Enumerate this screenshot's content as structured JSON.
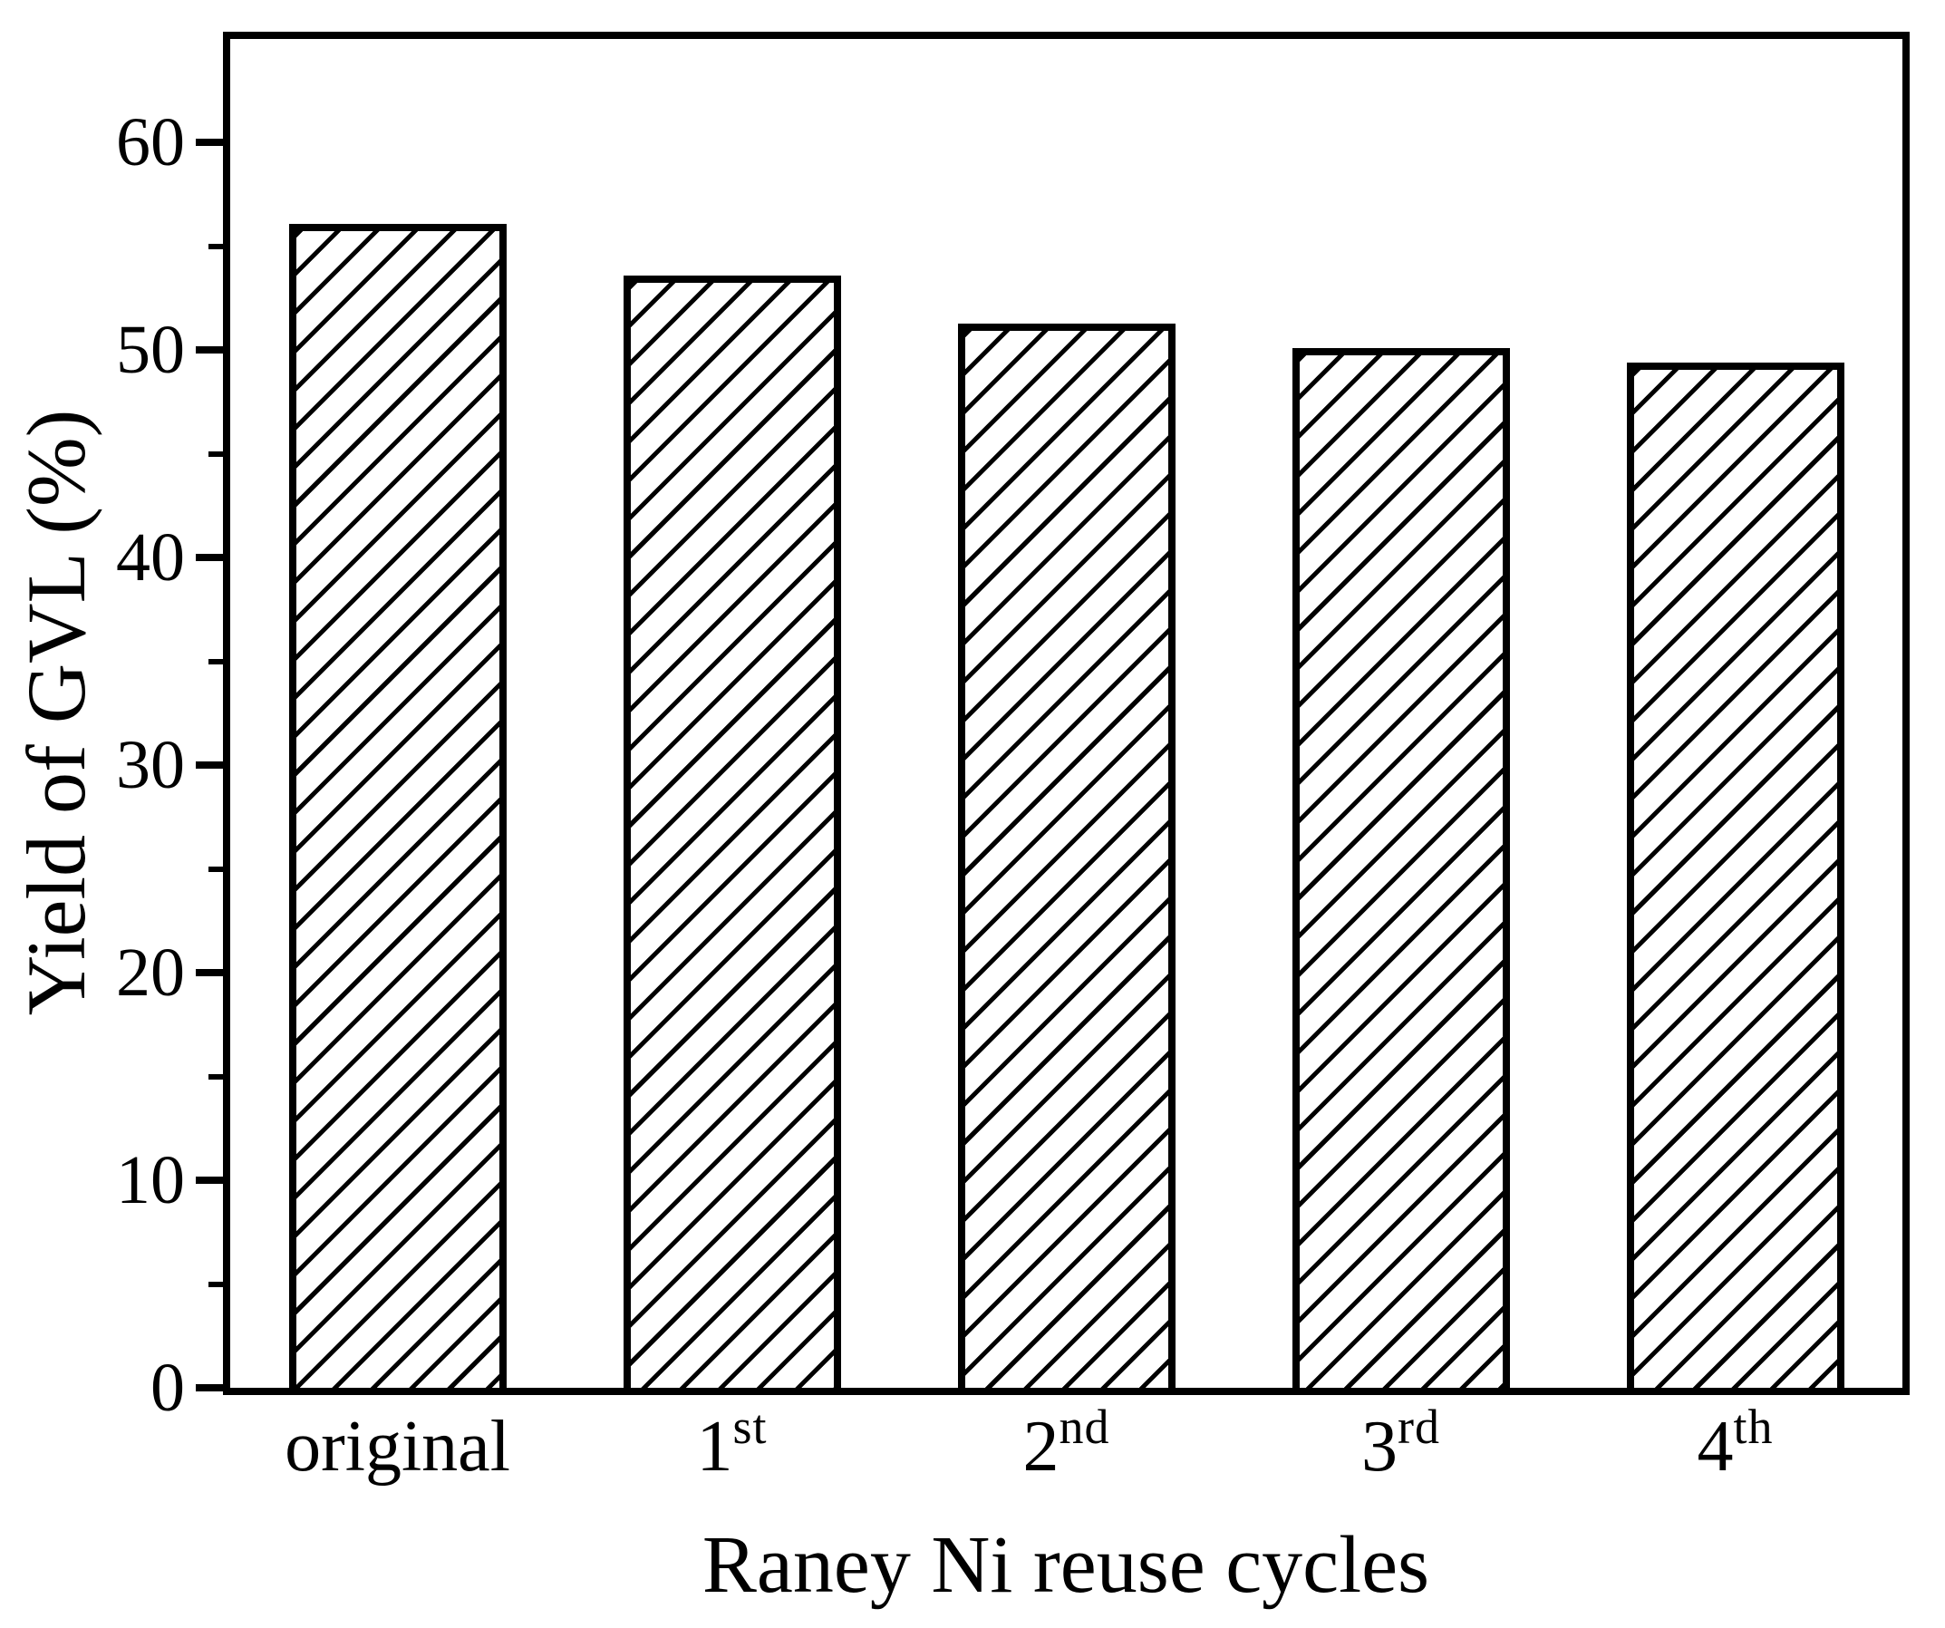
{
  "chart_data": {
    "type": "bar",
    "title": "",
    "xlabel": "Raney Ni reuse cycles",
    "ylabel": "Yield of GVL (%)",
    "categories": [
      {
        "text": "original",
        "sup": ""
      },
      {
        "text": "1",
        "sup": "st"
      },
      {
        "text": "2",
        "sup": "nd"
      },
      {
        "text": "3",
        "sup": "rd"
      },
      {
        "text": "4",
        "sup": "th"
      }
    ],
    "values": [
      56.1,
      53.6,
      51.3,
      50.1,
      49.4
    ],
    "ylim": [
      0,
      65
    ],
    "yticks_major": [
      0,
      10,
      20,
      30,
      40,
      50,
      60
    ],
    "yticks_minor": [
      5,
      15,
      25,
      35,
      45,
      55
    ],
    "grid": false,
    "legend_position": "none",
    "bar_style": {
      "fill": "#ffffff",
      "hatch": "diagonal-forward",
      "line_color": "#000000"
    }
  },
  "colors": {
    "foreground": "#000000",
    "background": "#ffffff"
  }
}
